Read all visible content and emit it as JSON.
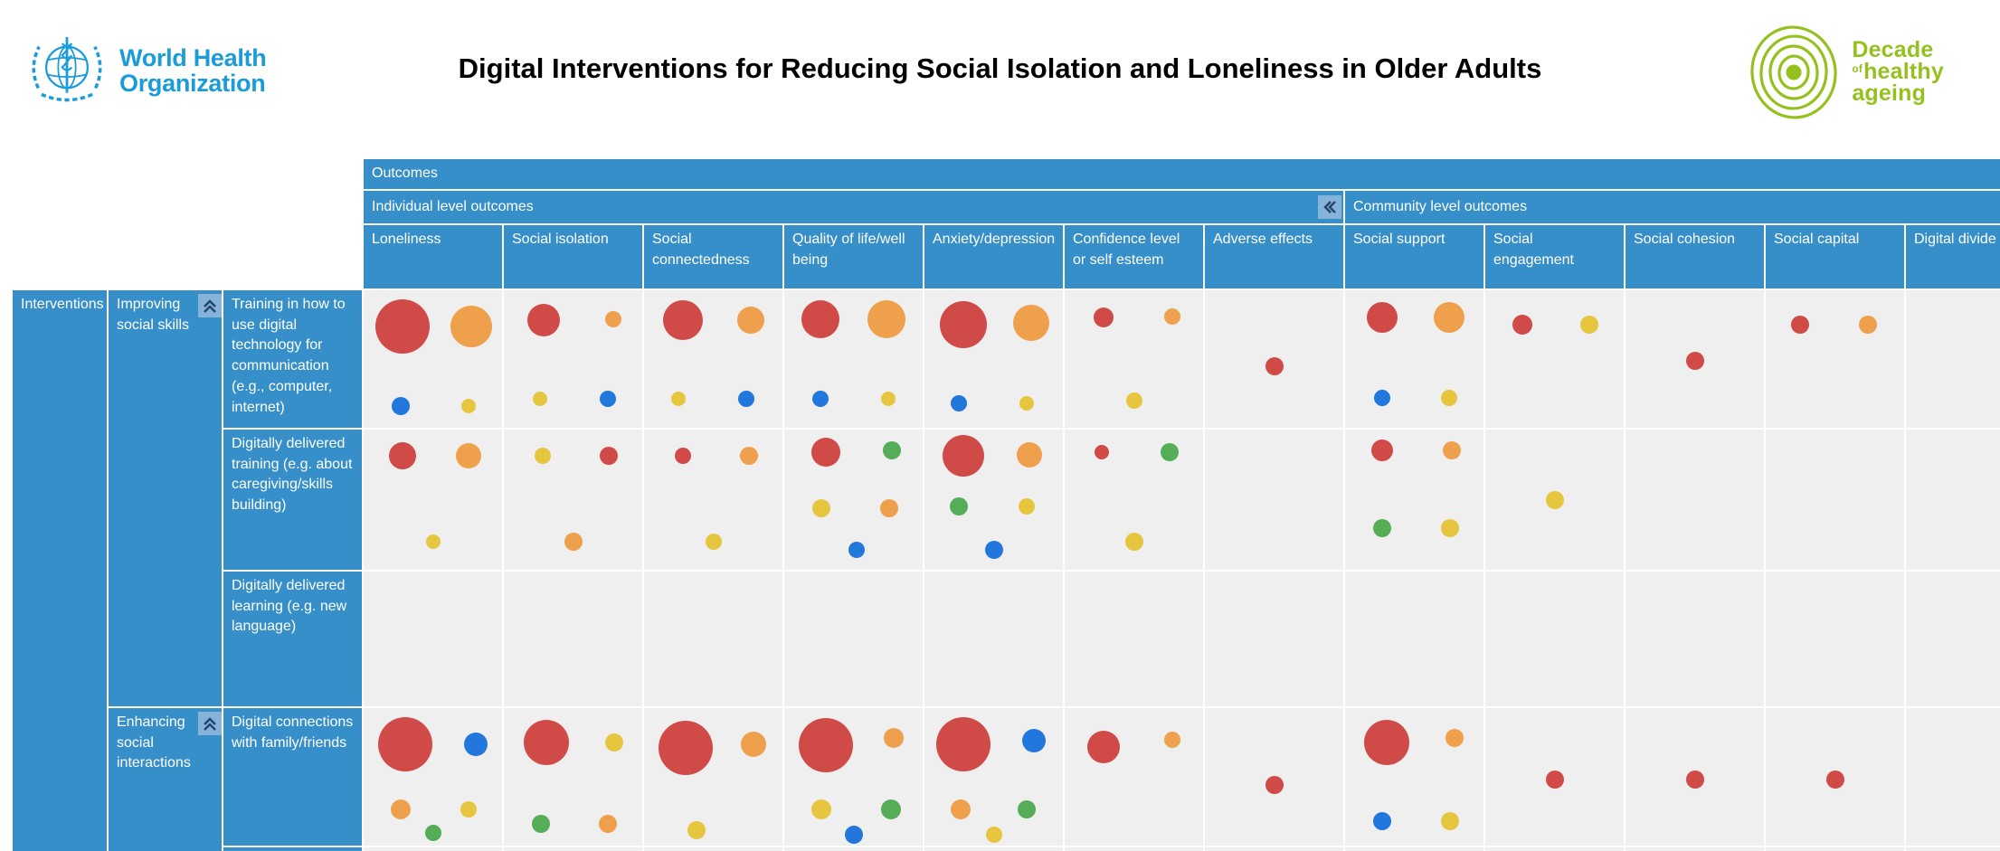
{
  "header": {
    "who_logo": {
      "line1": "World Health",
      "line2": "Organization"
    },
    "title": "Digital Interventions for Reducing Social Isolation and Loneliness in Older Adults",
    "decade_logo": {
      "word1": "Decade",
      "of": "of",
      "word2": "healthy",
      "word3": "ageing"
    }
  },
  "colors": {
    "header_blue": "#368fc9",
    "cell_bg": "#efefef",
    "collapse_btn_bg": "#85b3d9",
    "collapse_glyph": "#24466b",
    "who_blue": "#1a9cd9",
    "decade_green": "#95c11f",
    "title_black": "#000000"
  },
  "icons": {
    "collapse_columns": "chevron-double-left-icon",
    "collapse_rows": "chevron-double-up-icon",
    "who_emblem": "who-emblem-icon",
    "decade_rings": "decade-rings-icon"
  },
  "chart_data": {
    "type": "bubble-matrix",
    "title": "Digital Interventions for Reducing Social Isolation and Loneliness in Older Adults",
    "top_axis_label": "Outcomes",
    "row_header_label": "Interventions",
    "legend_position": "none",
    "grid": true,
    "col_groups": [
      {
        "label": "Individual level outcomes",
        "cols": 7
      },
      {
        "label": "Community level outcomes",
        "cols": 5
      }
    ],
    "columns": [
      "Loneliness",
      "Social isolation",
      "Social connectedness",
      "Quality of life/well being",
      "Anxiety/depression",
      "Confidence level or self esteem",
      "Adverse effects",
      "Social support",
      "Social engagement",
      "Social cohesion",
      "Social capital",
      "Digital divide"
    ],
    "row_groups": [
      {
        "label": "Improving social skills"
      },
      {
        "label": "Enhancing social interactions"
      }
    ],
    "rows": [
      {
        "label": "Training in how to use digital technology for communication (e.g., computer, internet)",
        "group": 0
      },
      {
        "label": "Digitally delivered training (e.g. about caregiving/skills building)",
        "group": 0
      },
      {
        "label": "Digitally delivered learning (e.g. new language)",
        "group": 0
      },
      {
        "label": "Digital connections with family/friends",
        "group": 1
      },
      {
        "label": "",
        "group": 1
      }
    ],
    "bubble_colors": {
      "red": "#d04b47",
      "orange": "#efa04c",
      "yellow": "#e6c63f",
      "blue": "#2277dd",
      "green": "#55ad57"
    },
    "cells": [
      [
        [
          {
            "c": "red",
            "r": 30,
            "x": 0.28,
            "y": 0.26
          },
          {
            "c": "orange",
            "r": 23,
            "x": 0.78,
            "y": 0.26
          },
          {
            "c": "blue",
            "r": 10,
            "x": 0.27,
            "y": 0.84
          },
          {
            "c": "yellow",
            "r": 8,
            "x": 0.76,
            "y": 0.84
          }
        ],
        [
          {
            "c": "red",
            "r": 18,
            "x": 0.29,
            "y": 0.22
          },
          {
            "c": "orange",
            "r": 9,
            "x": 0.79,
            "y": 0.21
          },
          {
            "c": "yellow",
            "r": 8,
            "x": 0.26,
            "y": 0.79
          },
          {
            "c": "blue",
            "r": 9,
            "x": 0.75,
            "y": 0.79
          }
        ],
        [
          {
            "c": "red",
            "r": 22,
            "x": 0.28,
            "y": 0.22
          },
          {
            "c": "orange",
            "r": 15,
            "x": 0.77,
            "y": 0.22
          },
          {
            "c": "yellow",
            "r": 8,
            "x": 0.25,
            "y": 0.79
          },
          {
            "c": "blue",
            "r": 9,
            "x": 0.74,
            "y": 0.79
          }
        ],
        [
          {
            "c": "red",
            "r": 21,
            "x": 0.26,
            "y": 0.21
          },
          {
            "c": "orange",
            "r": 21,
            "x": 0.74,
            "y": 0.21
          },
          {
            "c": "blue",
            "r": 9,
            "x": 0.26,
            "y": 0.79
          },
          {
            "c": "yellow",
            "r": 8,
            "x": 0.75,
            "y": 0.79
          }
        ],
        [
          {
            "c": "red",
            "r": 26,
            "x": 0.28,
            "y": 0.25
          },
          {
            "c": "orange",
            "r": 20,
            "x": 0.77,
            "y": 0.24
          },
          {
            "c": "blue",
            "r": 9,
            "x": 0.25,
            "y": 0.82
          },
          {
            "c": "yellow",
            "r": 8,
            "x": 0.74,
            "y": 0.82
          }
        ],
        [
          {
            "c": "red",
            "r": 11,
            "x": 0.28,
            "y": 0.2
          },
          {
            "c": "orange",
            "r": 9,
            "x": 0.78,
            "y": 0.19
          },
          {
            "c": "yellow",
            "r": 9,
            "x": 0.5,
            "y": 0.8
          }
        ],
        [
          {
            "c": "red",
            "r": 10,
            "x": 0.5,
            "y": 0.55
          }
        ],
        [
          {
            "c": "red",
            "r": 17,
            "x": 0.27,
            "y": 0.2
          },
          {
            "c": "orange",
            "r": 17,
            "x": 0.75,
            "y": 0.2
          },
          {
            "c": "blue",
            "r": 9,
            "x": 0.27,
            "y": 0.78
          },
          {
            "c": "yellow",
            "r": 9,
            "x": 0.75,
            "y": 0.78
          }
        ],
        [
          {
            "c": "red",
            "r": 11,
            "x": 0.27,
            "y": 0.25
          },
          {
            "c": "yellow",
            "r": 10,
            "x": 0.75,
            "y": 0.25
          }
        ],
        [
          {
            "c": "red",
            "r": 10,
            "x": 0.5,
            "y": 0.51
          }
        ],
        [
          {
            "c": "red",
            "r": 10,
            "x": 0.25,
            "y": 0.25
          },
          {
            "c": "orange",
            "r": 10,
            "x": 0.74,
            "y": 0.25
          }
        ],
        []
      ],
      [
        [
          {
            "c": "red",
            "r": 15,
            "x": 0.28,
            "y": 0.19
          },
          {
            "c": "orange",
            "r": 14,
            "x": 0.76,
            "y": 0.19
          },
          {
            "c": "yellow",
            "r": 8,
            "x": 0.5,
            "y": 0.8
          }
        ],
        [
          {
            "c": "yellow",
            "r": 9,
            "x": 0.28,
            "y": 0.19
          },
          {
            "c": "red",
            "r": 10,
            "x": 0.76,
            "y": 0.19
          },
          {
            "c": "orange",
            "r": 10,
            "x": 0.5,
            "y": 0.8
          }
        ],
        [
          {
            "c": "red",
            "r": 9,
            "x": 0.28,
            "y": 0.19
          },
          {
            "c": "orange",
            "r": 10,
            "x": 0.76,
            "y": 0.19
          },
          {
            "c": "yellow",
            "r": 9,
            "x": 0.5,
            "y": 0.8
          }
        ],
        [
          {
            "c": "red",
            "r": 16,
            "x": 0.3,
            "y": 0.16
          },
          {
            "c": "green",
            "r": 10,
            "x": 0.78,
            "y": 0.15
          },
          {
            "c": "yellow",
            "r": 10,
            "x": 0.27,
            "y": 0.56
          },
          {
            "c": "orange",
            "r": 10,
            "x": 0.76,
            "y": 0.56
          },
          {
            "c": "blue",
            "r": 9,
            "x": 0.52,
            "y": 0.86
          }
        ],
        [
          {
            "c": "red",
            "r": 23,
            "x": 0.28,
            "y": 0.19
          },
          {
            "c": "orange",
            "r": 14,
            "x": 0.76,
            "y": 0.18
          },
          {
            "c": "green",
            "r": 10,
            "x": 0.25,
            "y": 0.55
          },
          {
            "c": "yellow",
            "r": 9,
            "x": 0.74,
            "y": 0.55
          },
          {
            "c": "blue",
            "r": 10,
            "x": 0.5,
            "y": 0.86
          }
        ],
        [
          {
            "c": "red",
            "r": 8,
            "x": 0.27,
            "y": 0.16
          },
          {
            "c": "green",
            "r": 10,
            "x": 0.76,
            "y": 0.16
          },
          {
            "c": "yellow",
            "r": 10,
            "x": 0.5,
            "y": 0.8
          }
        ],
        [],
        [
          {
            "c": "red",
            "r": 12,
            "x": 0.27,
            "y": 0.15
          },
          {
            "c": "orange",
            "r": 10,
            "x": 0.77,
            "y": 0.15
          },
          {
            "c": "green",
            "r": 10,
            "x": 0.27,
            "y": 0.7
          },
          {
            "c": "yellow",
            "r": 10,
            "x": 0.76,
            "y": 0.7
          }
        ],
        [
          {
            "c": "yellow",
            "r": 10,
            "x": 0.5,
            "y": 0.5
          }
        ],
        [],
        [],
        []
      ],
      [
        [],
        [],
        [],
        [],
        [],
        [],
        [],
        [],
        [],
        [],
        [],
        []
      ],
      [
        [
          {
            "c": "red",
            "r": 30,
            "x": 0.3,
            "y": 0.26
          },
          {
            "c": "blue",
            "r": 13,
            "x": 0.81,
            "y": 0.26
          },
          {
            "c": "orange",
            "r": 11,
            "x": 0.27,
            "y": 0.74
          },
          {
            "c": "yellow",
            "r": 9,
            "x": 0.76,
            "y": 0.74
          },
          {
            "c": "green",
            "r": 9,
            "x": 0.5,
            "y": 0.91
          }
        ],
        [
          {
            "c": "red",
            "r": 25,
            "x": 0.31,
            "y": 0.25
          },
          {
            "c": "yellow",
            "r": 10,
            "x": 0.8,
            "y": 0.25
          },
          {
            "c": "green",
            "r": 10,
            "x": 0.27,
            "y": 0.84
          },
          {
            "c": "orange",
            "r": 10,
            "x": 0.75,
            "y": 0.84
          }
        ],
        [
          {
            "c": "red",
            "r": 30,
            "x": 0.3,
            "y": 0.29
          },
          {
            "c": "orange",
            "r": 14,
            "x": 0.79,
            "y": 0.26
          },
          {
            "c": "yellow",
            "r": 10,
            "x": 0.38,
            "y": 0.89
          }
        ],
        [
          {
            "c": "red",
            "r": 30,
            "x": 0.3,
            "y": 0.27
          },
          {
            "c": "orange",
            "r": 11,
            "x": 0.79,
            "y": 0.22
          },
          {
            "c": "yellow",
            "r": 11,
            "x": 0.27,
            "y": 0.74
          },
          {
            "c": "green",
            "r": 11,
            "x": 0.77,
            "y": 0.74
          },
          {
            "c": "blue",
            "r": 10,
            "x": 0.5,
            "y": 0.92
          }
        ],
        [
          {
            "c": "red",
            "r": 30,
            "x": 0.28,
            "y": 0.26
          },
          {
            "c": "blue",
            "r": 13,
            "x": 0.79,
            "y": 0.24
          },
          {
            "c": "orange",
            "r": 11,
            "x": 0.26,
            "y": 0.74
          },
          {
            "c": "green",
            "r": 10,
            "x": 0.74,
            "y": 0.74
          },
          {
            "c": "yellow",
            "r": 9,
            "x": 0.5,
            "y": 0.92
          }
        ],
        [
          {
            "c": "red",
            "r": 18,
            "x": 0.28,
            "y": 0.28
          },
          {
            "c": "orange",
            "r": 9,
            "x": 0.78,
            "y": 0.23
          }
        ],
        [
          {
            "c": "red",
            "r": 10,
            "x": 0.5,
            "y": 0.56
          }
        ],
        [
          {
            "c": "red",
            "r": 25,
            "x": 0.3,
            "y": 0.25
          },
          {
            "c": "orange",
            "r": 10,
            "x": 0.79,
            "y": 0.22
          },
          {
            "c": "blue",
            "r": 10,
            "x": 0.27,
            "y": 0.82
          },
          {
            "c": "yellow",
            "r": 10,
            "x": 0.76,
            "y": 0.82
          }
        ],
        [
          {
            "c": "red",
            "r": 10,
            "x": 0.5,
            "y": 0.52
          }
        ],
        [
          {
            "c": "red",
            "r": 10,
            "x": 0.5,
            "y": 0.52
          }
        ],
        [
          {
            "c": "red",
            "r": 10,
            "x": 0.5,
            "y": 0.52
          }
        ],
        []
      ],
      [
        [],
        [],
        [],
        [],
        [],
        [],
        [],
        [],
        [],
        [],
        [],
        []
      ]
    ]
  }
}
